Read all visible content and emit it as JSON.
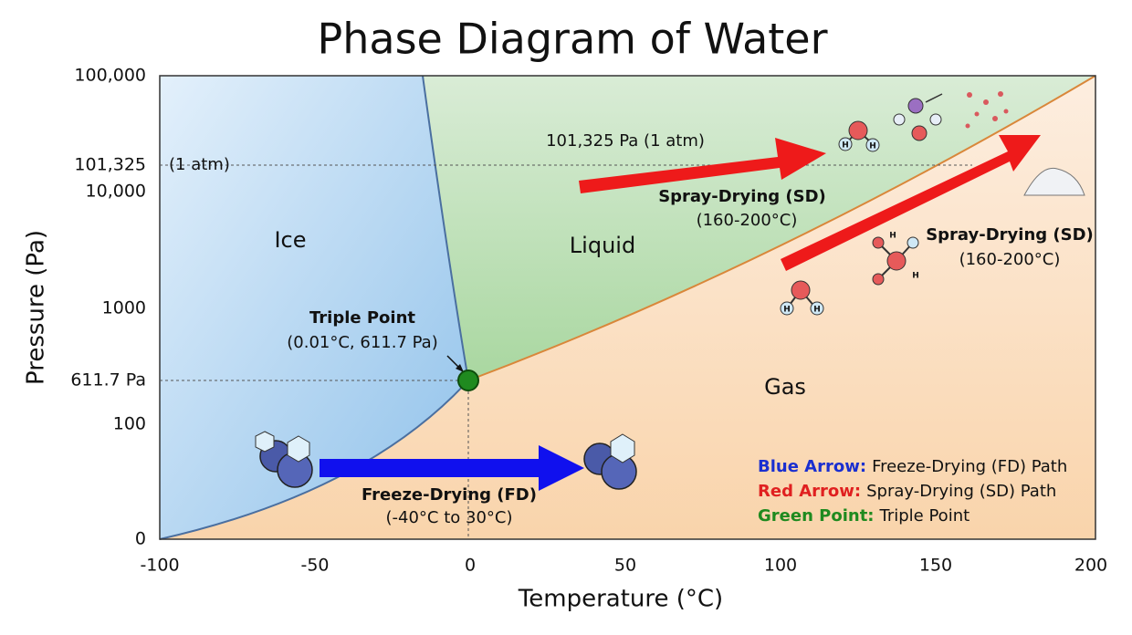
{
  "title": "Phase Diagram of Water",
  "axes": {
    "x_label": "Temperature (°C)",
    "y_label": "Pressure (Pa)",
    "x_ticks": [
      "-100",
      "-50",
      "0",
      "50",
      "100",
      "150",
      "200"
    ],
    "y_ticks": [
      "100,000",
      "101,325",
      "10,000",
      "1000",
      "611.7 Pa",
      "100",
      "0"
    ]
  },
  "regions": {
    "ice": "Ice",
    "liquid": "Liquid",
    "gas": "Gas"
  },
  "annotations": {
    "atm_left": "(1 atm)",
    "atm_line": "101,325 Pa (1 atm)",
    "triple_title": "Triple Point",
    "triple_detail": "(0.01°C, 611.7 Pa)",
    "fd_title": "Freeze-Drying (FD)",
    "fd_detail": "(-40°C to 30°C)",
    "sd1_title": "Spray-Drying (SD)",
    "sd1_detail": "(160-200°C)",
    "sd2_title": "Spray-Drying (SD)",
    "sd2_detail": "(160-200°C)"
  },
  "icons": {
    "atom_label": "H"
  },
  "legend": [
    {
      "key": "Blue Arrow:",
      "text": "Freeze-Drying (FD) Path"
    },
    {
      "key": "Red Arrow:",
      "text": "Spray-Drying (SD) Path"
    },
    {
      "key": "Green Point:",
      "text": "Triple Point"
    }
  ]
}
